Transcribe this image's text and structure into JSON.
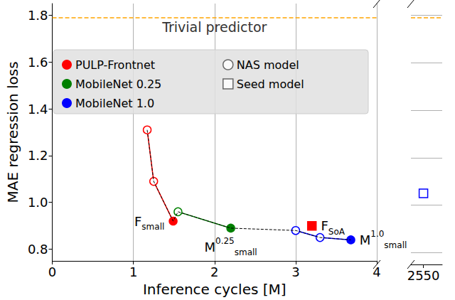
{
  "chart_data": {
    "type": "scatter",
    "x_label": "Inference cycles [M]",
    "y_label": "MAE regression loss",
    "xlim": [
      0,
      4
    ],
    "xticks": [
      0,
      1,
      2,
      3,
      4
    ],
    "xlim_right": [
      2546,
      2556
    ],
    "xticks_right": [
      2550
    ],
    "ylim": [
      0.75,
      1.85
    ],
    "yticks": [
      0.8,
      {
        "value": 1,
        "label": "1.0"
      },
      1.2,
      1.4,
      1.6,
      1.8
    ],
    "grid": true,
    "legend": "upper left",
    "reference_line": {
      "value": 1.79,
      "label": "Trivial predictor",
      "color": "#ffa500",
      "line_style": "dashed"
    },
    "series": [
      {
        "name": "PULP-Frontnet",
        "color": "#ff0000",
        "x": [
          1.17,
          1.25,
          1.49,
          3.2
        ],
        "values": [
          1.31,
          1.09,
          0.92,
          0.9
        ],
        "markers": [
          "circle-open",
          "circle-open",
          "circle",
          "square"
        ],
        "labels": [
          null,
          null,
          {
            "text": "F",
            "sub": "small",
            "position": "left"
          },
          {
            "text": "F",
            "sub": "SoA",
            "position": "right"
          }
        ]
      },
      {
        "name": "MobileNet 0.25",
        "color": "#008000",
        "x": [
          1.55,
          2.2
        ],
        "values": [
          0.96,
          0.89
        ],
        "markers": [
          "circle-open",
          "circle"
        ],
        "labels": [
          null,
          {
            "text": "M",
            "sup": "0.25",
            "sub": "small",
            "position": "bottom"
          }
        ]
      },
      {
        "name": "MobileNet 1.0",
        "color": "#0000ff",
        "x": [
          3.0,
          3.3,
          3.68,
          2550
        ],
        "values": [
          0.88,
          0.85,
          0.84,
          1.05
        ],
        "markers": [
          "circle-open",
          "circle-open",
          "circle",
          "square-open"
        ],
        "labels": [
          null,
          null,
          {
            "text": "M",
            "sup": "1.0",
            "sub": "small",
            "position": "right"
          },
          null
        ]
      }
    ],
    "legend_markers": [
      {
        "name": "NAS model",
        "marker": "circle-open"
      },
      {
        "name": "Seed model",
        "marker": "square-open"
      }
    ]
  }
}
